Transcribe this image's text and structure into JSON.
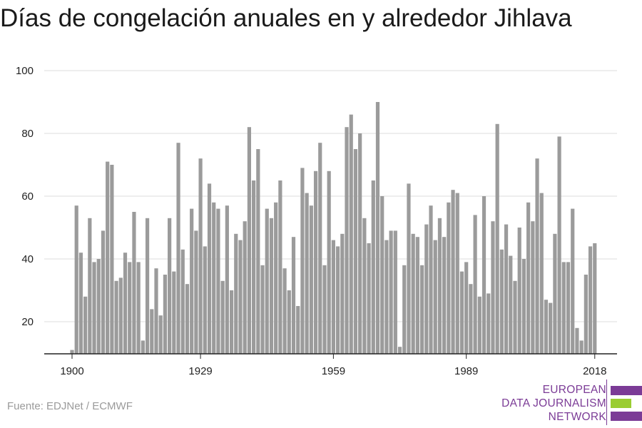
{
  "chart_data": {
    "type": "bar",
    "title": "Días de congelación anuales en y alrededor Jihlava",
    "xlabel": "",
    "ylabel": "",
    "x_start": 1900,
    "x_ticks": [
      1900,
      1929,
      1959,
      1989,
      2018
    ],
    "y_ticks": [
      20,
      40,
      60,
      80,
      100
    ],
    "ylim": [
      10,
      100
    ],
    "grid": true,
    "bar_color": "#9b9b9b",
    "years": [
      1900,
      1901,
      1902,
      1903,
      1904,
      1905,
      1906,
      1907,
      1908,
      1909,
      1910,
      1911,
      1912,
      1913,
      1914,
      1915,
      1916,
      1917,
      1918,
      1919,
      1920,
      1921,
      1922,
      1923,
      1924,
      1925,
      1926,
      1927,
      1928,
      1929,
      1930,
      1931,
      1932,
      1933,
      1934,
      1935,
      1936,
      1937,
      1938,
      1939,
      1940,
      1941,
      1942,
      1943,
      1944,
      1945,
      1946,
      1947,
      1948,
      1949,
      1950,
      1951,
      1952,
      1953,
      1954,
      1955,
      1956,
      1957,
      1958,
      1959,
      1960,
      1961,
      1962,
      1963,
      1964,
      1965,
      1966,
      1967,
      1968,
      1969,
      1970,
      1971,
      1972,
      1973,
      1974,
      1975,
      1976,
      1977,
      1978,
      1979,
      1980,
      1981,
      1982,
      1983,
      1984,
      1985,
      1986,
      1987,
      1988,
      1989,
      1990,
      1991,
      1992,
      1993,
      1994,
      1995,
      1996,
      1997,
      1998,
      1999,
      2000,
      2001,
      2002,
      2003,
      2004,
      2005,
      2006,
      2007,
      2008,
      2009,
      2010,
      2011,
      2012,
      2013,
      2014,
      2015,
      2016,
      2017,
      2018
    ],
    "values": [
      11,
      57,
      42,
      28,
      53,
      39,
      40,
      49,
      71,
      70,
      33,
      34,
      42,
      39,
      55,
      39,
      14,
      53,
      24,
      37,
      22,
      35,
      53,
      36,
      77,
      43,
      32,
      56,
      49,
      72,
      44,
      64,
      58,
      56,
      33,
      57,
      30,
      48,
      46,
      52,
      82,
      65,
      75,
      38,
      56,
      53,
      58,
      65,
      37,
      30,
      47,
      25,
      69,
      61,
      57,
      68,
      77,
      38,
      68,
      46,
      44,
      48,
      82,
      86,
      75,
      80,
      53,
      45,
      65,
      90,
      60,
      46,
      49,
      49,
      12,
      38,
      64,
      48,
      47,
      38,
      51,
      57,
      46,
      53,
      47,
      58,
      62,
      61,
      36,
      39,
      32,
      54,
      28,
      60,
      29,
      52,
      83,
      43,
      51,
      41,
      33,
      50,
      40,
      58,
      52,
      72,
      61,
      27,
      26,
      48,
      79,
      39,
      39,
      56,
      18,
      14,
      35,
      44,
      45
    ]
  },
  "source_text": "Fuente: EDJNet / ECMWF",
  "logo": {
    "line1": "EUROPEAN",
    "line2": "DATA JOURNALISM",
    "line3": "NETWORK",
    "colors": {
      "purple": "#7b3b96",
      "green": "#9acd32"
    }
  }
}
